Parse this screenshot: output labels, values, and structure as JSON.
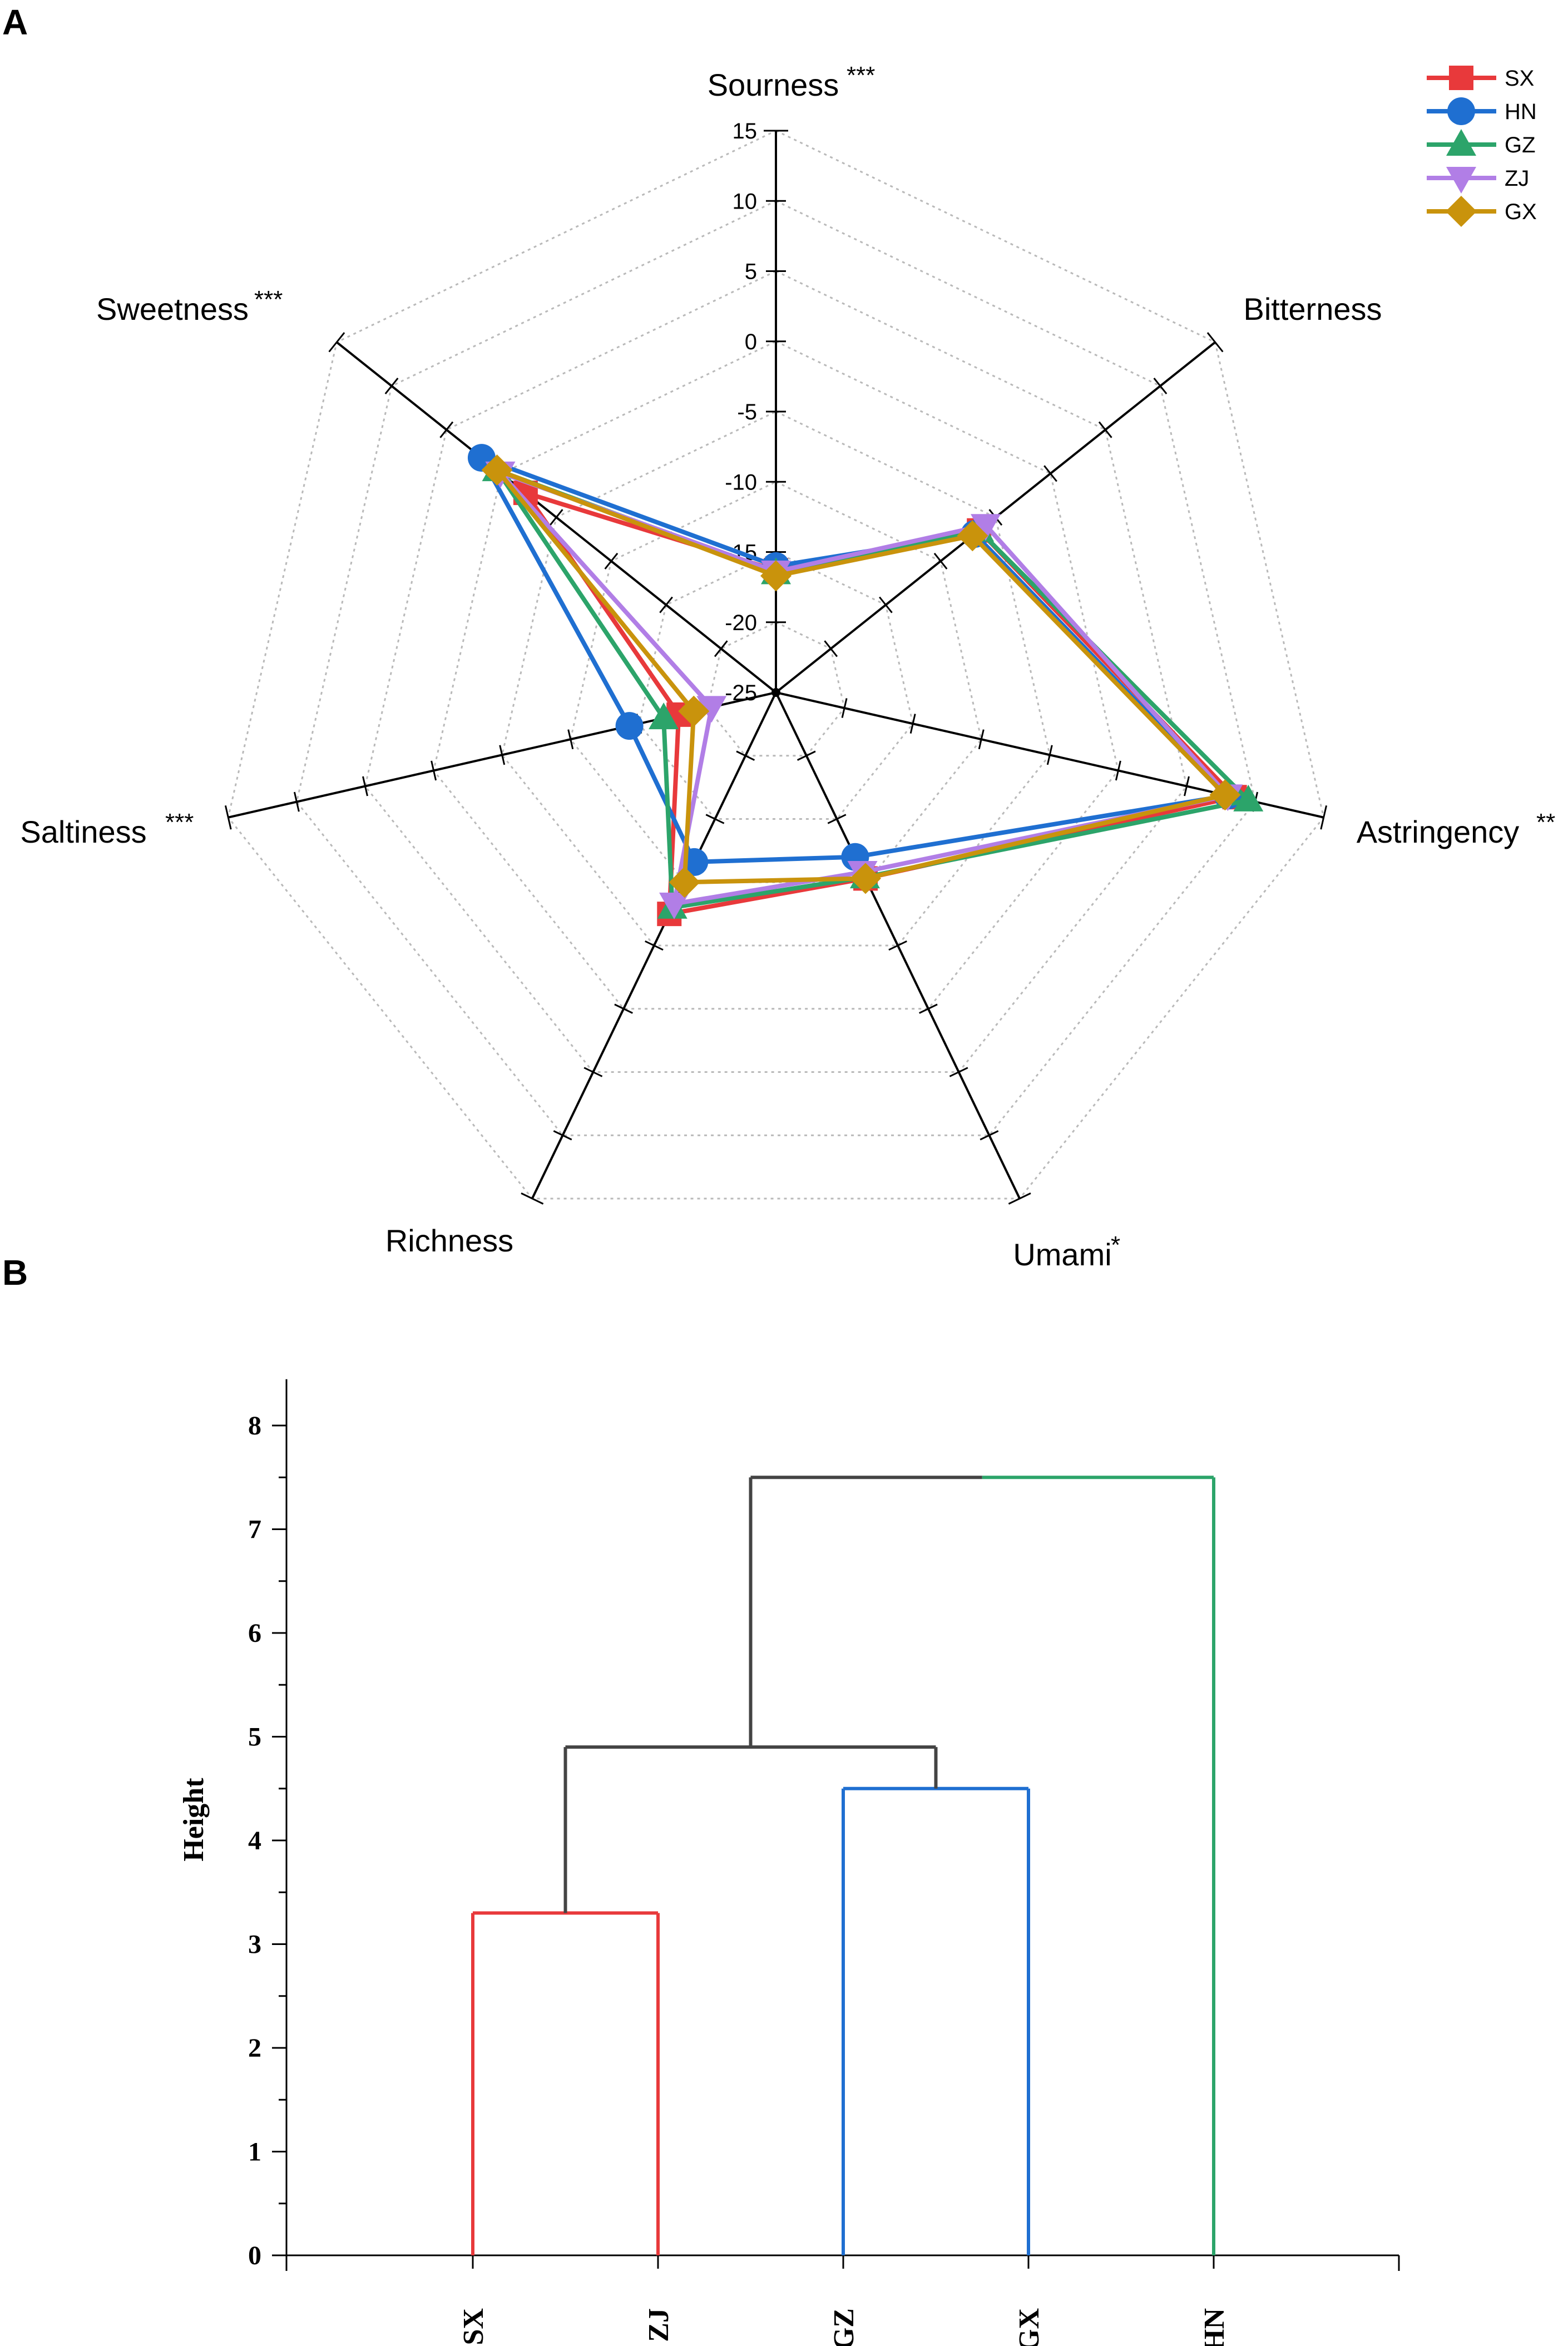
{
  "panels": {
    "a_label": "A",
    "b_label": "B"
  },
  "chart_data": [
    {
      "type": "radar",
      "panel": "A",
      "axes": [
        {
          "label": "Sourness",
          "sig": "***"
        },
        {
          "label": "Bitterness",
          "sig": ""
        },
        {
          "label": "Astringency",
          "sig": "**"
        },
        {
          "label": "Umami",
          "sig": "*"
        },
        {
          "label": "Richness",
          "sig": ""
        },
        {
          "label": "Saltiness",
          "sig": "***"
        },
        {
          "label": "Sweetness",
          "sig": "***"
        }
      ],
      "rlim": [
        -25,
        15
      ],
      "ticks": [
        -25,
        -20,
        -15,
        -10,
        -5,
        0,
        5,
        10,
        15
      ],
      "tick_labels": [
        "-25",
        "-20",
        "-15",
        "-10",
        "-5",
        "0",
        "5",
        "10",
        "15"
      ],
      "series": [
        {
          "name": "SX",
          "color": "#e8393b",
          "marker": "square",
          "values": [
            -16.3,
            -6.5,
            8.5,
            -10.3,
            -7.5,
            -17.9,
            -2.2
          ]
        },
        {
          "name": "HN",
          "color": "#1f6fd1",
          "marker": "circle",
          "values": [
            -16.0,
            -6.9,
            8.0,
            -12.0,
            -11.6,
            -14.3,
            1.8
          ]
        },
        {
          "name": "GZ",
          "color": "#2ca46a",
          "marker": "triangle",
          "values": [
            -16.5,
            -6.5,
            9.5,
            -10.4,
            -8.0,
            -16.8,
            0.4
          ]
        },
        {
          "name": "ZJ",
          "color": "#b17ee6",
          "marker": "tri-down",
          "values": [
            -16.4,
            -5.9,
            8.0,
            -10.8,
            -8.3,
            -20.3,
            0.1
          ]
        },
        {
          "name": "GX",
          "color": "#c9930c",
          "marker": "diamond",
          "values": [
            -16.7,
            -7.1,
            7.8,
            -10.3,
            -10.0,
            -19.0,
            0.4
          ]
        }
      ],
      "legend_position": "top-right"
    },
    {
      "type": "dendrogram",
      "panel": "B",
      "ylabel": "Height",
      "ylim": [
        0,
        8.5
      ],
      "yticks": [
        0,
        1,
        2,
        3,
        4,
        5,
        6,
        7,
        8
      ],
      "ytick_labels": [
        "0",
        "1",
        "2",
        "3",
        "4",
        "5",
        "6",
        "7",
        "8"
      ],
      "leaves": [
        "SX",
        "ZJ",
        "GZ",
        "GX",
        "HN"
      ],
      "merges": [
        {
          "left": [
            "SX"
          ],
          "right": [
            "ZJ"
          ],
          "height": 3.3,
          "color": "#e8393b"
        },
        {
          "left": [
            "GZ"
          ],
          "right": [
            "GX"
          ],
          "height": 4.5,
          "color": "#1f6fd1"
        },
        {
          "left": [
            "SX",
            "ZJ"
          ],
          "right": [
            "GZ",
            "GX"
          ],
          "height": 4.9,
          "color": "#444444"
        },
        {
          "left": [
            "SX",
            "ZJ",
            "GZ",
            "GX"
          ],
          "right": [
            "HN"
          ],
          "height": 7.5,
          "color": "#444444",
          "right_color": "#2ca46a"
        }
      ]
    }
  ]
}
